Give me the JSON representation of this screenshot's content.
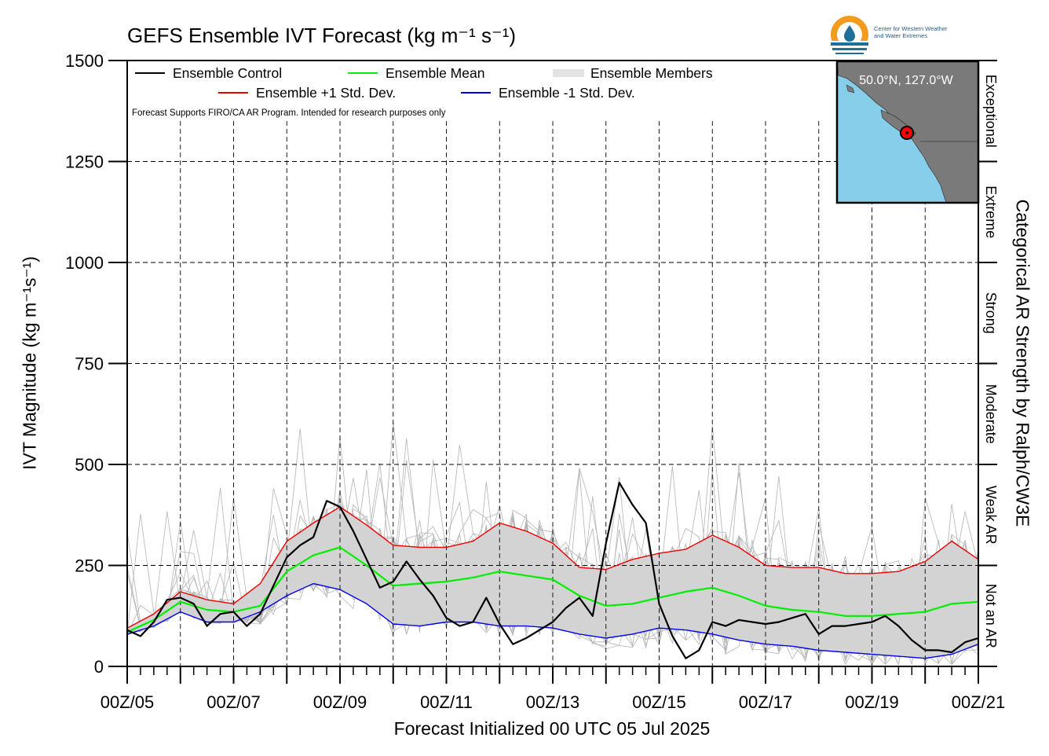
{
  "title": "GEFS Ensemble IVT Forecast (kg m⁻¹ s⁻¹)",
  "note": "Forecast Supports FIRO/CA AR Program. Intended for research purposes only",
  "location": "50.0°N, 127.0°W",
  "logo": {
    "line1": "Center for Western Weather",
    "line2": "and Water Extremes"
  },
  "colors": {
    "control": "#000000",
    "mean": "#00ee00",
    "plus_std": "#ee0000",
    "minus_std": "#0000ee",
    "members": "#b4b4b4",
    "spread": "#d3d3d3",
    "map_water": "#87ceeb",
    "map_land": "#7a7a7a"
  },
  "chart_data": {
    "type": "line",
    "ylabel": "IVT Magnitude (kg m⁻¹s⁻¹)",
    "xlabel": "Forecast Initialized 00 UTC 05 Jul 2025",
    "right_label": "Categorical AR Strength by Ralph/CW3E",
    "ylim": [
      0,
      1500
    ],
    "yticks": [
      0,
      250,
      500,
      750,
      1000,
      1250,
      1500
    ],
    "xlim": [
      0,
      384
    ],
    "x_unit": "forecast hour",
    "x_ticks": [
      0,
      48,
      96,
      144,
      192,
      240,
      288,
      336,
      384
    ],
    "x_tick_labels": [
      "00Z/05",
      "00Z/07",
      "00Z/09",
      "00Z/11",
      "00Z/13",
      "00Z/15",
      "00Z/17",
      "00Z/19",
      "00Z/21"
    ],
    "grid": true,
    "legend_position": "top-left",
    "categories_right": [
      {
        "label": "Not an AR",
        "range": [
          0,
          250
        ]
      },
      {
        "label": "Weak AR",
        "range": [
          250,
          500
        ]
      },
      {
        "label": "Moderate",
        "range": [
          500,
          750
        ]
      },
      {
        "label": "Strong",
        "range": [
          750,
          1000
        ]
      },
      {
        "label": "Extreme",
        "range": [
          1000,
          1250
        ]
      },
      {
        "label": "Exceptional",
        "range": [
          1250,
          1500
        ]
      }
    ],
    "series": [
      {
        "name": "Ensemble Control",
        "x": [
          0,
          6,
          12,
          18,
          24,
          30,
          36,
          42,
          48,
          54,
          60,
          66,
          72,
          78,
          84,
          90,
          96,
          102,
          108,
          114,
          120,
          126,
          132,
          138,
          144,
          150,
          156,
          162,
          168,
          174,
          180,
          186,
          192,
          198,
          204,
          210,
          216,
          222,
          228,
          234,
          240,
          246,
          252,
          258,
          264,
          270,
          276,
          282,
          288,
          294,
          300,
          306,
          312,
          318,
          324,
          330,
          336,
          342,
          348,
          354,
          360,
          366,
          372,
          378,
          384
        ],
        "y": [
          90,
          75,
          110,
          165,
          170,
          155,
          100,
          130,
          135,
          100,
          130,
          200,
          270,
          300,
          320,
          410,
          395,
          335,
          265,
          195,
          210,
          260,
          215,
          175,
          120,
          100,
          110,
          170,
          105,
          55,
          70,
          90,
          110,
          145,
          170,
          125,
          305,
          455,
          400,
          355,
          155,
          75,
          20,
          40,
          110,
          100,
          115,
          110,
          105,
          110,
          120,
          130,
          80,
          100,
          100,
          105,
          110,
          125,
          100,
          65,
          40,
          40,
          35,
          60,
          70
        ]
      },
      {
        "name": "Ensemble +1 Std. Dev.",
        "x": [
          0,
          12,
          24,
          36,
          48,
          60,
          72,
          84,
          96,
          108,
          120,
          132,
          144,
          156,
          168,
          180,
          192,
          204,
          216,
          228,
          240,
          252,
          264,
          276,
          288,
          300,
          312,
          324,
          336,
          348,
          360,
          372,
          384
        ],
        "y": [
          95,
          130,
          185,
          165,
          155,
          205,
          310,
          355,
          395,
          350,
          300,
          295,
          295,
          310,
          355,
          335,
          305,
          245,
          240,
          265,
          280,
          290,
          325,
          295,
          250,
          245,
          245,
          230,
          230,
          235,
          260,
          310,
          265
        ]
      },
      {
        "name": "Ensemble Mean",
        "x": [
          0,
          12,
          24,
          36,
          48,
          60,
          72,
          84,
          96,
          108,
          120,
          132,
          144,
          156,
          168,
          180,
          192,
          204,
          216,
          228,
          240,
          252,
          264,
          276,
          288,
          300,
          312,
          324,
          336,
          348,
          360,
          372,
          384
        ],
        "y": [
          85,
          115,
          160,
          140,
          135,
          150,
          235,
          275,
          295,
          250,
          200,
          205,
          210,
          220,
          235,
          225,
          215,
          175,
          150,
          155,
          170,
          185,
          195,
          175,
          150,
          140,
          135,
          125,
          125,
          130,
          135,
          155,
          160
        ]
      },
      {
        "name": "Ensemble -1 Std. Dev.",
        "x": [
          0,
          12,
          24,
          36,
          48,
          60,
          72,
          84,
          96,
          108,
          120,
          132,
          144,
          156,
          168,
          180,
          192,
          204,
          216,
          228,
          240,
          252,
          264,
          276,
          288,
          300,
          312,
          324,
          336,
          348,
          360,
          372,
          384
        ],
        "y": [
          80,
          100,
          135,
          110,
          110,
          135,
          175,
          205,
          190,
          155,
          105,
          100,
          110,
          110,
          100,
          100,
          95,
          80,
          70,
          80,
          95,
          90,
          80,
          65,
          55,
          50,
          40,
          35,
          30,
          25,
          20,
          30,
          55
        ]
      },
      {
        "name": "Ensemble Members",
        "count": 30,
        "spread_band": "between -1 and +1 Std. Dev."
      }
    ]
  }
}
